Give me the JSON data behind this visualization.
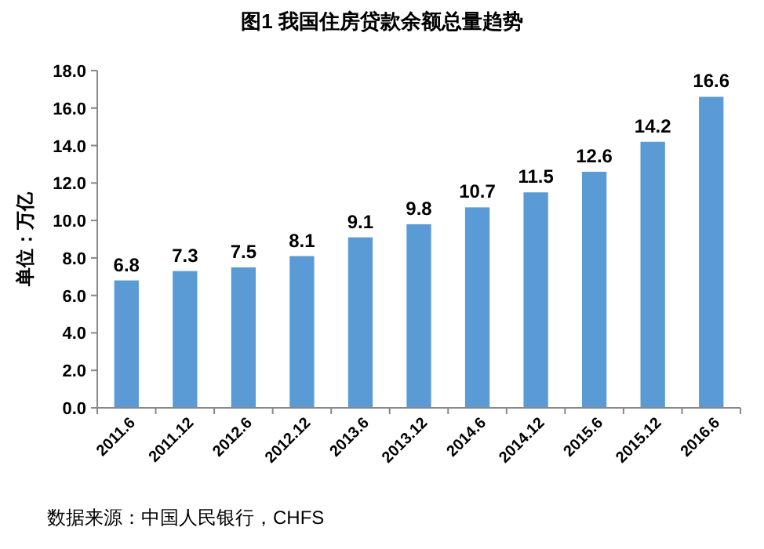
{
  "chart_data": {
    "type": "bar",
    "title": "图1 我国住房贷款余额总量趋势",
    "ylabel": "单位：万亿",
    "categories": [
      "2011.6",
      "2011.12",
      "2012.6",
      "2012.12",
      "2013.6",
      "2013.12",
      "2014.6",
      "2014.12",
      "2015.6",
      "2015.12",
      "2016.6"
    ],
    "values": [
      6.8,
      7.3,
      7.5,
      8.1,
      9.1,
      9.8,
      10.7,
      11.5,
      12.6,
      14.2,
      16.6
    ],
    "color": "#5b9bd5",
    "ylim": [
      0,
      18
    ],
    "yticks": [
      {
        "value": 0,
        "label": "0.0"
      },
      {
        "value": 2,
        "label": "2.0"
      },
      {
        "value": 4,
        "label": "4.0"
      },
      {
        "value": 6,
        "label": "6.0"
      },
      {
        "value": 8,
        "label": "8.0"
      },
      {
        "value": 10,
        "label": "10.0"
      },
      {
        "value": 12,
        "label": "12.0"
      },
      {
        "value": 14,
        "label": "14.0"
      },
      {
        "value": 16,
        "label": "16.0"
      },
      {
        "value": 18,
        "label": "18.0"
      }
    ],
    "data_labels": true,
    "annotations": [
      "数据来源：中国人民银行，CHFS"
    ]
  }
}
